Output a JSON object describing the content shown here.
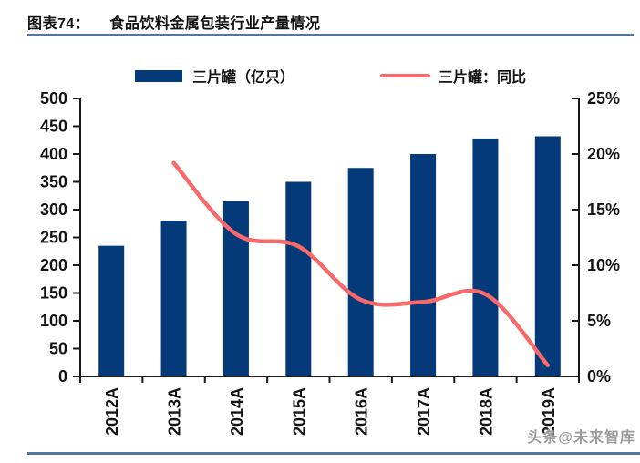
{
  "header": {
    "title_prefix": "图表74：",
    "title": "食品饮料金属包装行业产量情况"
  },
  "legend": {
    "bar_label": "三片罐（亿只）",
    "line_label": "三片罐：同比"
  },
  "watermark": "头条@未来智库",
  "colors": {
    "bar": "#04397a",
    "line": "#f8696b",
    "axis": "#1a1a1a",
    "rule": "#5574a5",
    "tick_text": "#141414"
  },
  "chart_data": {
    "type": "bar",
    "subtype": "bar-line-combo",
    "title": "食品饮料金属包装行业产量情况",
    "categories": [
      "2012A",
      "2013A",
      "2014A",
      "2015A",
      "2016A",
      "2017A",
      "2018A",
      "2019A"
    ],
    "series": [
      {
        "name": "三片罐（亿只）",
        "type": "bar",
        "axis": "left",
        "color": "#04397a",
        "values": [
          235,
          280,
          315,
          350,
          375,
          400,
          428,
          432
        ]
      },
      {
        "name": "三片罐：同比",
        "type": "line",
        "axis": "right",
        "color": "#f8696b",
        "values": [
          null,
          19.2,
          12.8,
          11.7,
          6.9,
          6.7,
          7.4,
          1.0
        ]
      }
    ],
    "left_axis": {
      "min": 0,
      "max": 500,
      "step": 50,
      "tick_labels": [
        "0",
        "50",
        "100",
        "150",
        "200",
        "250",
        "300",
        "350",
        "400",
        "450",
        "500"
      ]
    },
    "right_axis": {
      "min": 0,
      "max": 25,
      "step": 5,
      "tick_labels": [
        "0%",
        "5%",
        "10%",
        "15%",
        "20%",
        "25%"
      ]
    },
    "grid": false,
    "legend_position": "top",
    "xlabel": "",
    "ylabel": ""
  }
}
